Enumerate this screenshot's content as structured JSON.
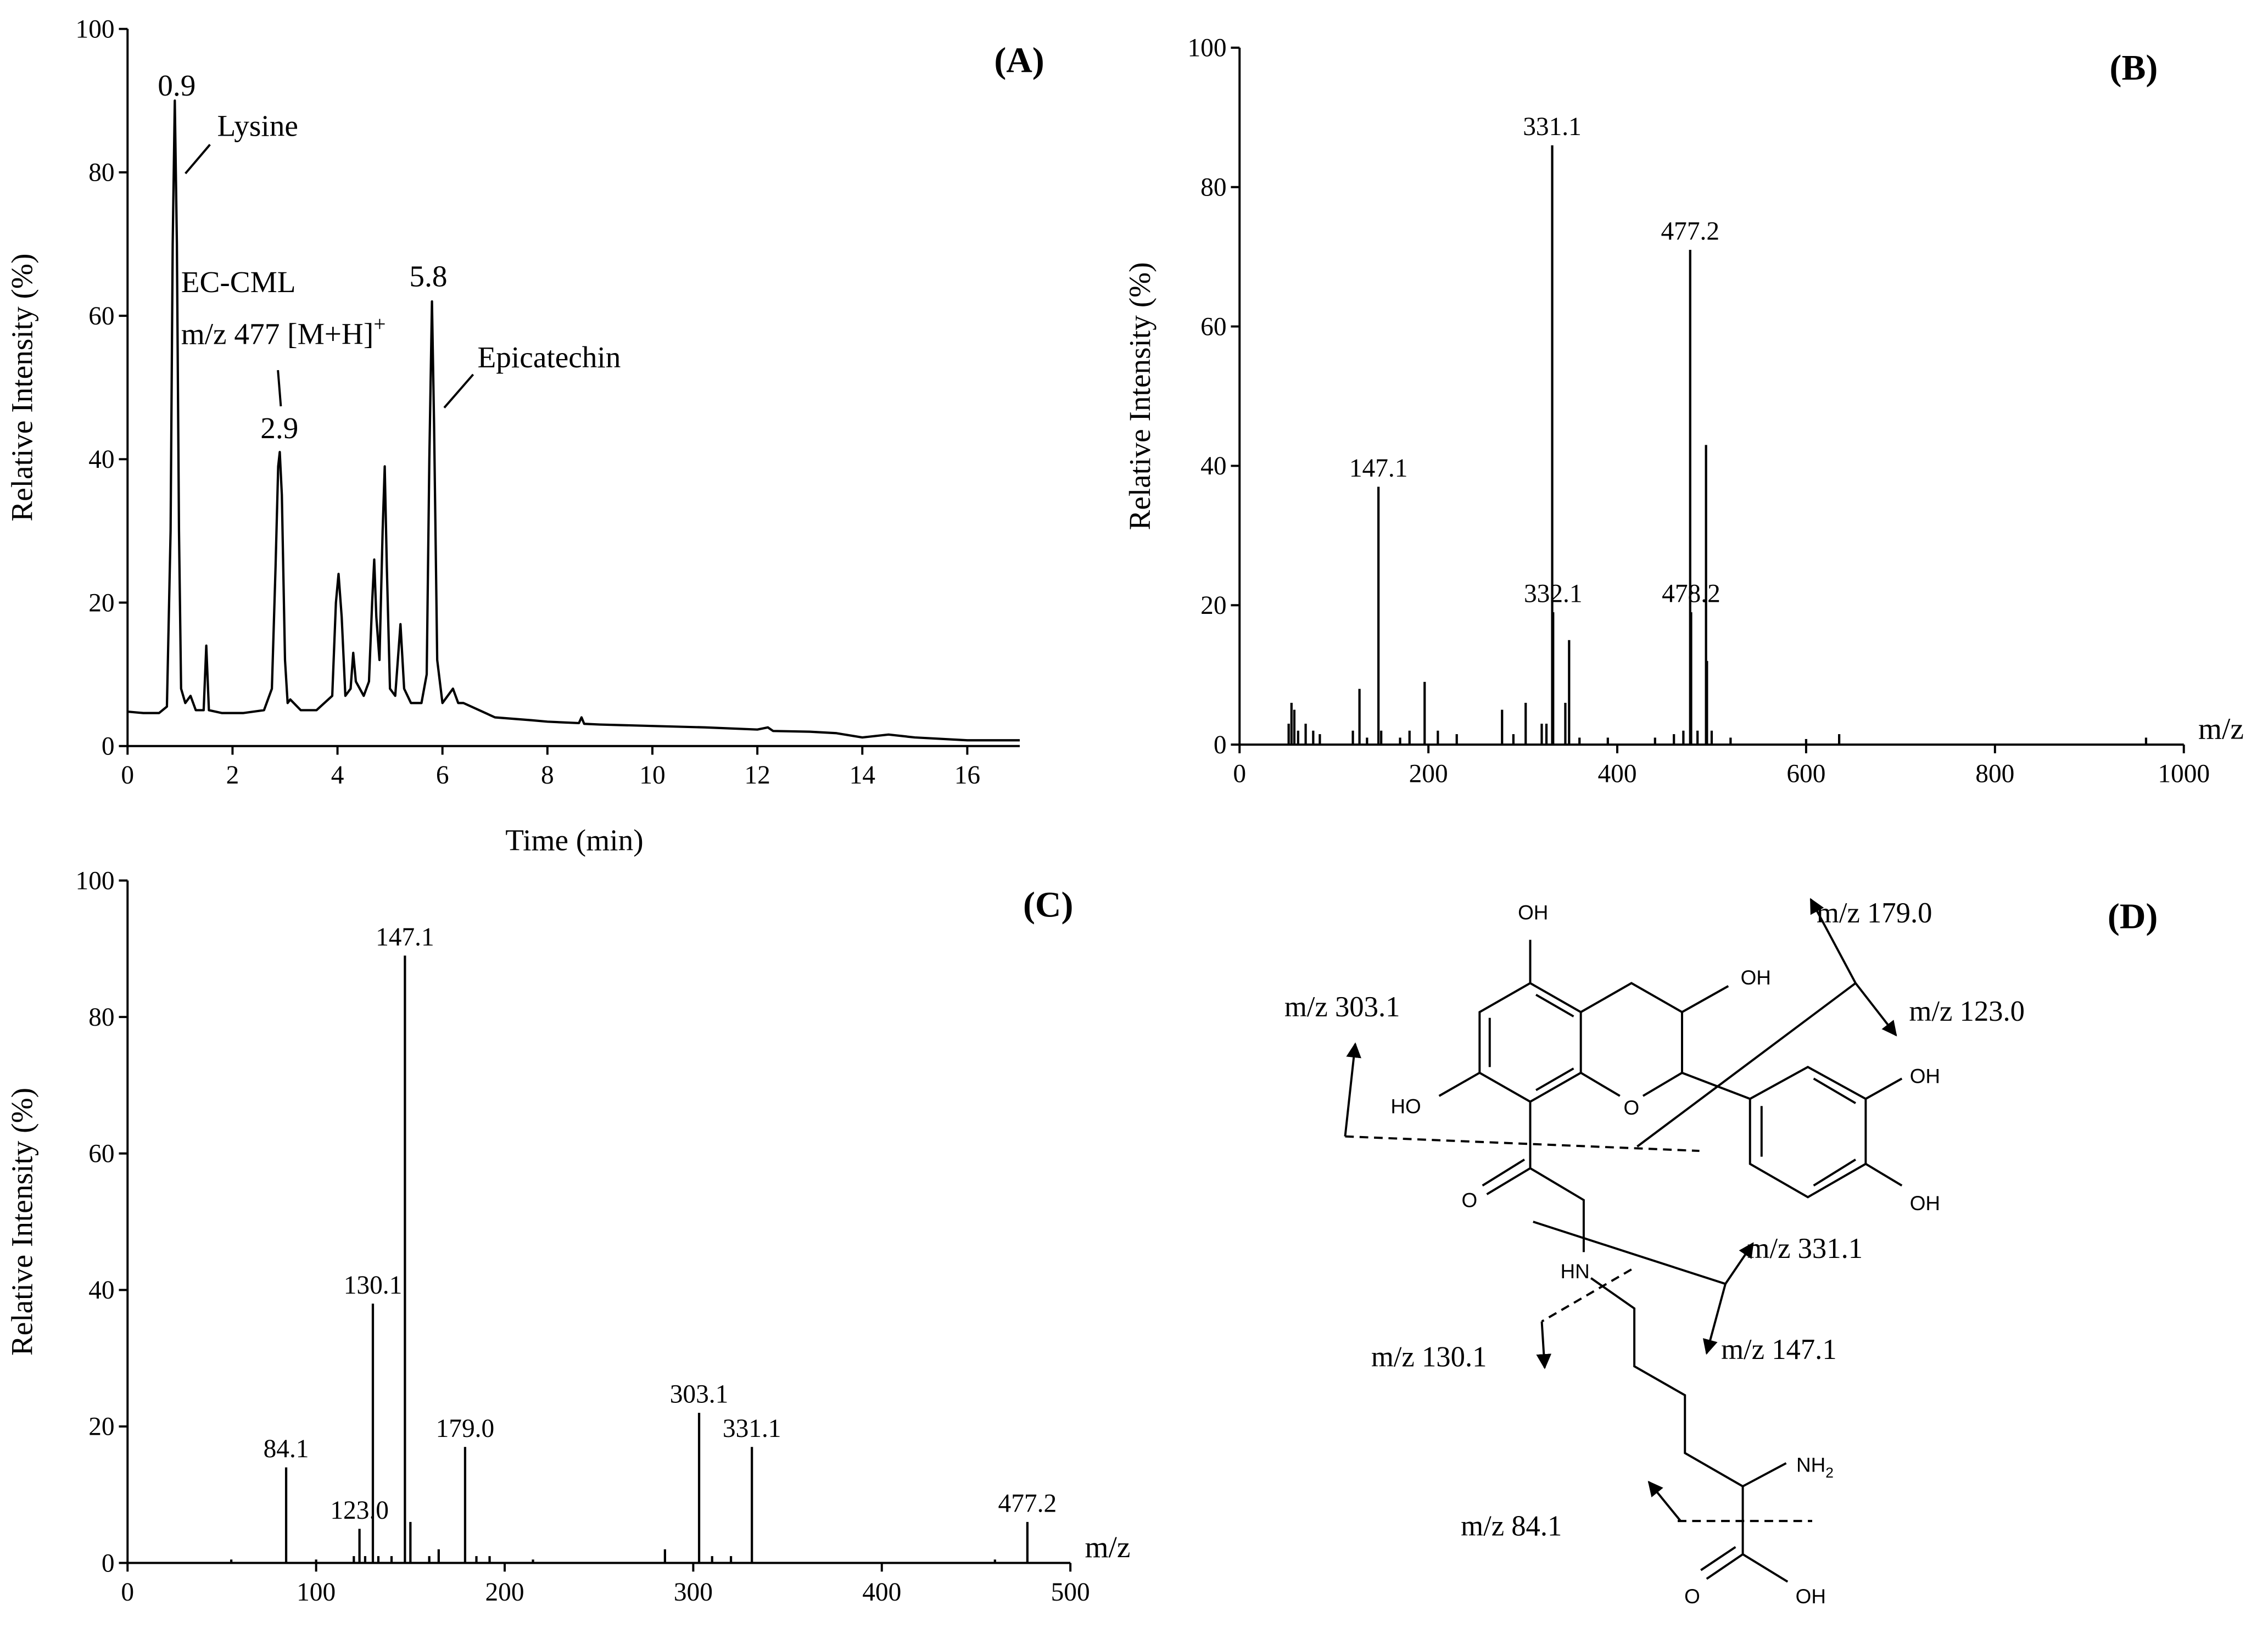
{
  "chart_data": [
    {
      "type": "line",
      "label": "(A)",
      "xlabel": "Time (min)",
      "ylabel": "Relative Intensity (%)",
      "color": "#000000",
      "xlim": [
        0,
        17
      ],
      "xticks": [
        0,
        2,
        4,
        6,
        8,
        10,
        12,
        14,
        16
      ],
      "ylim": [
        0,
        100
      ],
      "yticks": [
        0,
        20,
        40,
        60,
        80,
        100
      ],
      "x": [
        0,
        0.3,
        0.6,
        0.75,
        0.82,
        0.86,
        0.9,
        0.94,
        0.98,
        1.02,
        1.1,
        1.2,
        1.3,
        1.45,
        1.5,
        1.55,
        1.8,
        2.2,
        2.6,
        2.75,
        2.82,
        2.87,
        2.9,
        2.94,
        3.0,
        3.05,
        3.1,
        3.3,
        3.6,
        3.9,
        3.97,
        4.02,
        4.08,
        4.15,
        4.25,
        4.3,
        4.35,
        4.5,
        4.6,
        4.66,
        4.7,
        4.74,
        4.8,
        4.86,
        4.9,
        4.94,
        5.0,
        5.1,
        5.2,
        5.27,
        5.4,
        5.6,
        5.7,
        5.75,
        5.8,
        5.84,
        5.9,
        6.0,
        6.2,
        6.3,
        6.4,
        7.0,
        7.7,
        8.0,
        8.6,
        8.65,
        8.7,
        9,
        10,
        11,
        12,
        12.2,
        12.3,
        13,
        13.5,
        14,
        14.5,
        15,
        16,
        17
      ],
      "values": [
        4.8,
        4.6,
        4.6,
        5.5,
        30,
        70,
        90,
        70,
        30,
        8,
        6,
        7,
        5,
        5,
        14,
        5,
        4.6,
        4.6,
        5,
        8,
        25,
        39,
        41,
        35,
        12,
        6,
        6.5,
        5,
        5,
        7,
        20,
        24,
        18,
        7,
        8,
        13,
        9,
        7,
        9,
        20,
        26,
        18,
        12,
        30,
        39,
        25,
        8,
        7,
        17,
        8,
        6,
        6,
        10,
        40,
        62,
        45,
        12,
        6,
        8,
        6,
        6,
        4,
        3.6,
        3.4,
        3.2,
        4,
        3.1,
        3.0,
        2.8,
        2.6,
        2.3,
        2.6,
        2.1,
        2.0,
        1.8,
        1.2,
        1.6,
        1.2,
        0.8,
        0.8
      ],
      "annotations": [
        "0.9",
        "Lysine",
        "EC-CML",
        {
          "text": "m/z 477 [M+H]",
          "sup": "+"
        },
        "2.9",
        "5.8",
        "Epicatechin"
      ]
    },
    {
      "type": "stem",
      "label": "(B)",
      "xlabel": "m/z",
      "ylabel": "Relative Intensity (%)",
      "color": "#000000",
      "xlim": [
        0,
        1000
      ],
      "xticks": [
        0,
        200,
        400,
        600,
        800,
        1000
      ],
      "ylim": [
        0,
        100
      ],
      "yticks": [
        0,
        20,
        40,
        60,
        80,
        100
      ],
      "x": [
        52,
        55,
        58,
        62,
        70,
        78,
        85,
        120,
        127,
        135,
        147.1,
        150,
        170,
        180,
        196,
        210,
        230,
        278,
        290,
        303,
        320,
        325,
        331.1,
        332.1,
        345,
        349,
        360,
        390,
        440,
        460,
        470,
        477.2,
        478.2,
        485,
        494,
        495,
        500,
        520,
        600,
        635,
        960
      ],
      "values": [
        3,
        6,
        5,
        2,
        3,
        2,
        1.5,
        2,
        8,
        1,
        37,
        2,
        1,
        2,
        9,
        2,
        1.5,
        5,
        1.5,
        6,
        3,
        3,
        86,
        19,
        6,
        15,
        1,
        1,
        1,
        1.5,
        2,
        71,
        19,
        2,
        43,
        12,
        2,
        1,
        0.8,
        1.5,
        1
      ],
      "x_labels": [
        null,
        null,
        null,
        null,
        null,
        null,
        null,
        null,
        null,
        null,
        "147.1",
        null,
        null,
        null,
        null,
        null,
        null,
        null,
        null,
        null,
        null,
        null,
        "331.1",
        "332.1",
        null,
        null,
        null,
        null,
        null,
        null,
        null,
        "477.2",
        "478.2",
        null,
        null,
        null,
        null,
        null,
        null,
        null,
        null
      ]
    },
    {
      "type": "stem",
      "label": "(C)",
      "xlabel": "m/z",
      "ylabel": "Relative Intensity (%)",
      "color": "#000000",
      "xlim": [
        0,
        500
      ],
      "xticks": [
        0,
        100,
        200,
        300,
        400,
        500
      ],
      "ylim": [
        0,
        100
      ],
      "yticks": [
        0,
        20,
        40,
        60,
        80,
        100
      ],
      "x": [
        55,
        84.1,
        100,
        120,
        123.0,
        126,
        130.1,
        133,
        140,
        147.1,
        150,
        160,
        165,
        179.0,
        185,
        192,
        215,
        285,
        303.1,
        310,
        320,
        331.1,
        460,
        477.2
      ],
      "values": [
        0.5,
        14,
        0.5,
        1,
        5,
        1,
        38,
        1,
        1,
        89,
        6,
        1,
        2,
        17,
        1,
        1,
        0.5,
        2,
        22,
        1,
        1,
        17,
        0.5,
        6
      ],
      "x_labels": [
        null,
        "84.1",
        null,
        null,
        "123.0",
        null,
        "130.1",
        null,
        null,
        "147.1",
        null,
        null,
        null,
        "179.0",
        null,
        null,
        null,
        null,
        "303.1",
        null,
        null,
        "331.1",
        null,
        "477.2"
      ]
    }
  ],
  "diagram": {
    "label": "(D)",
    "atoms": [
      "OH",
      "HO",
      "O",
      "OH",
      "OH",
      "OH",
      "O",
      "HN",
      {
        "text": "NH",
        "sub": "2"
      },
      "O",
      "OH"
    ],
    "fragments": [
      "m/z 179.0",
      "m/z 123.0",
      "m/z 303.1",
      "m/z 331.1",
      "m/z 130.1",
      "m/z 147.1",
      "m/z 84.1"
    ]
  }
}
